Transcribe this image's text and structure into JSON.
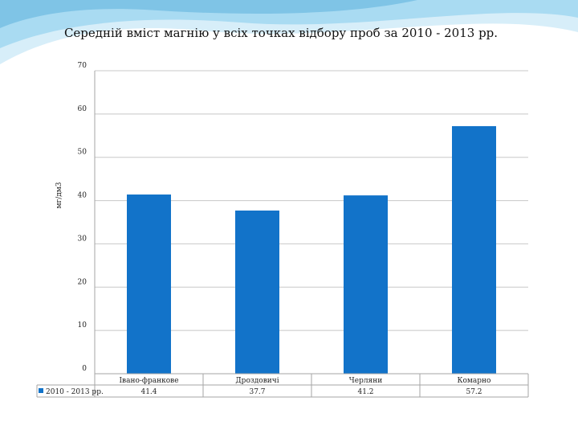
{
  "slide": {
    "title": "Середній вміст магнію у всіх точках відбору проб за 2010 - 2013 рр."
  },
  "chart_data": {
    "type": "bar",
    "title": "Середній вміст магнію у всіх точках відбору проб за 2010 - 2013 рр.",
    "xlabel": "",
    "ylabel": "мг/дм3",
    "ylim": [
      0,
      70
    ],
    "yticks": [
      0,
      10,
      20,
      30,
      40,
      50,
      60,
      70
    ],
    "grid": true,
    "categories": [
      "Івано-франкове",
      "Дроздовичі",
      "Черляни",
      "Комарно"
    ],
    "series": [
      {
        "name": "2010 - 2013 рр.",
        "values": [
          41.4,
          37.7,
          41.2,
          57.2
        ]
      }
    ],
    "data_table": true,
    "colors": {
      "bar": "#1273c9",
      "grid": "#c8c8c8",
      "axis": "#a6a6a6",
      "decor": "#7fc4e6"
    }
  }
}
